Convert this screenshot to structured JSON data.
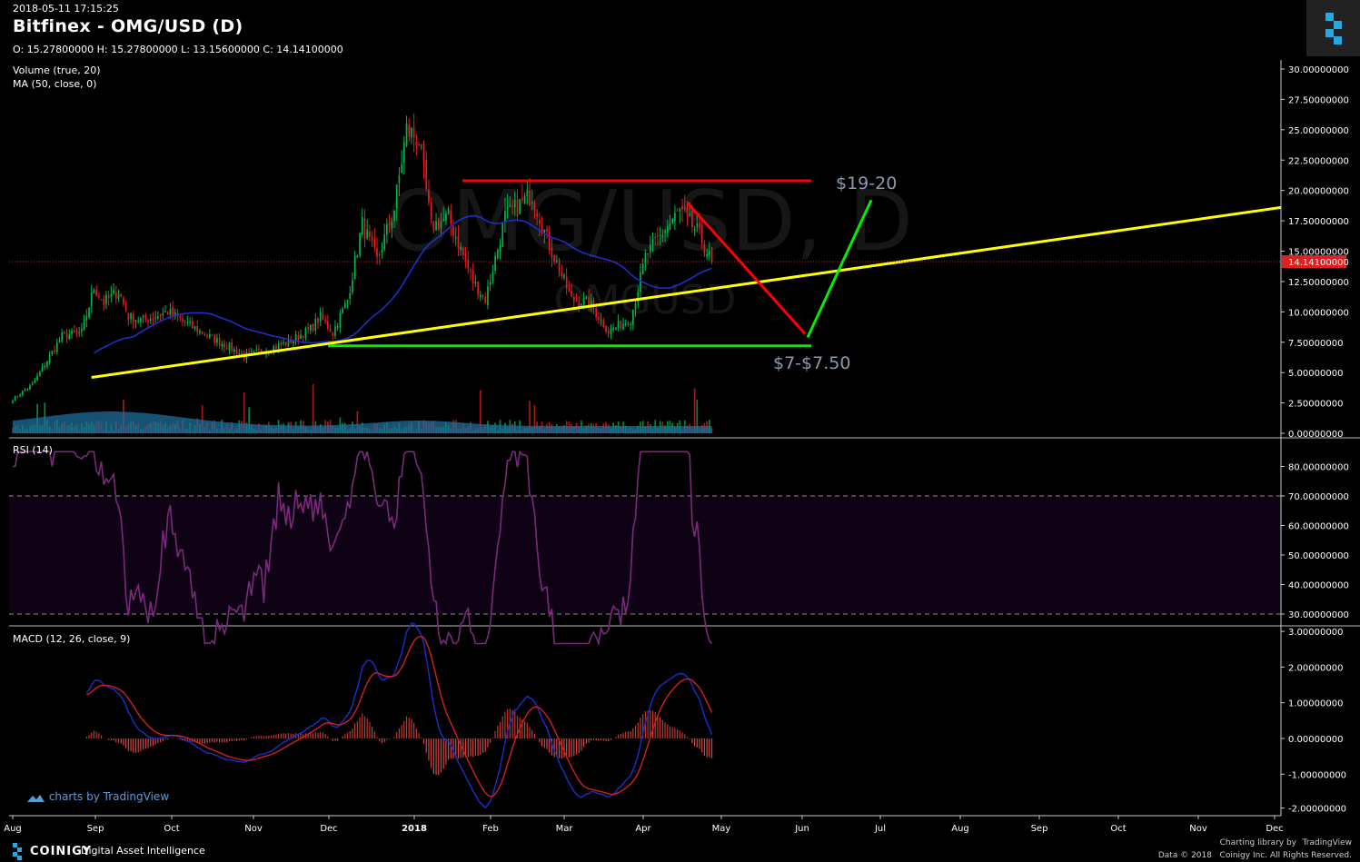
{
  "header": {
    "timestamp": "2018-05-11 17:15:25",
    "title": "Bitfinex - OMG/USD (D)",
    "ohlc": "O: 15.27800000 H: 15.27800000 L: 13.15600000 C: 14.14100000"
  },
  "watermark": {
    "symbol": "OMG/USD, D",
    "sub": "OMGUSD"
  },
  "colors": {
    "background": "#000000",
    "up": "#00b84a",
    "down": "#e02020",
    "ma": "#1a2fcc",
    "rsi": "#7a2a7a",
    "macd_line": "#1a2fcc",
    "signal_line": "#d21f1f",
    "trendline": "#ffff00",
    "support": "#00ee00",
    "resistance": "#ff0000"
  },
  "chart_data": {
    "type": "candlestick",
    "x_tick_labels": [
      "Aug",
      "Sep",
      "Oct",
      "Nov",
      "Dec",
      "2018",
      "Feb",
      "Mar",
      "Apr",
      "May",
      "Jun",
      "Jul",
      "Aug",
      "Sep",
      "Oct",
      "Nov",
      "Dec"
    ],
    "price_panel": {
      "indicators": [
        "Volume (true, 20)",
        "MA (50, close, 0)"
      ],
      "y_tick_labels": [
        "30.00000000",
        "27.50000000",
        "25.00000000",
        "22.50000000",
        "20.00000000",
        "17.50000000",
        "15.00000000",
        "12.50000000",
        "10.00000000",
        "7.50000000",
        "5.00000000",
        "2.50000000",
        "0.00000000"
      ],
      "ylim": [
        0,
        30
      ],
      "last_price_label": "14.14100000",
      "last_price": 14.141,
      "close_anchors": [
        {
          "date": "2017-07-31",
          "value": 2.8
        },
        {
          "date": "2017-08-08",
          "value": 4.0
        },
        {
          "date": "2017-08-20",
          "value": 8.0
        },
        {
          "date": "2017-08-28",
          "value": 8.3
        },
        {
          "date": "2017-09-02",
          "value": 12.0
        },
        {
          "date": "2017-09-06",
          "value": 10.8
        },
        {
          "date": "2017-09-12",
          "value": 11.7
        },
        {
          "date": "2017-09-16",
          "value": 9.6
        },
        {
          "date": "2017-09-22",
          "value": 9.3
        },
        {
          "date": "2017-10-02",
          "value": 10.0
        },
        {
          "date": "2017-10-14",
          "value": 8.5
        },
        {
          "date": "2017-10-25",
          "value": 7.3
        },
        {
          "date": "2017-11-02",
          "value": 6.4
        },
        {
          "date": "2017-11-10",
          "value": 6.8
        },
        {
          "date": "2017-11-20",
          "value": 7.5
        },
        {
          "date": "2017-11-29",
          "value": 8.6
        },
        {
          "date": "2017-12-03",
          "value": 9.6
        },
        {
          "date": "2017-12-08",
          "value": 8.3
        },
        {
          "date": "2017-12-14",
          "value": 11.0
        },
        {
          "date": "2017-12-20",
          "value": 17.2
        },
        {
          "date": "2017-12-26",
          "value": 14.2
        },
        {
          "date": "2018-01-02",
          "value": 18.5
        },
        {
          "date": "2018-01-07",
          "value": 25.0
        },
        {
          "date": "2018-01-12",
          "value": 24.2
        },
        {
          "date": "2018-01-17",
          "value": 17.0
        },
        {
          "date": "2018-01-24",
          "value": 17.8
        },
        {
          "date": "2018-02-03",
          "value": 12.5
        },
        {
          "date": "2018-02-08",
          "value": 11.0
        },
        {
          "date": "2018-02-16",
          "value": 17.8
        },
        {
          "date": "2018-02-27",
          "value": 19.7
        },
        {
          "date": "2018-03-05",
          "value": 16.0
        },
        {
          "date": "2018-03-15",
          "value": 11.0
        },
        {
          "date": "2018-03-22",
          "value": 10.8
        },
        {
          "date": "2018-03-30",
          "value": 8.4
        },
        {
          "date": "2018-04-08",
          "value": 9.4
        },
        {
          "date": "2018-04-14",
          "value": 14.5
        },
        {
          "date": "2018-04-22",
          "value": 16.8
        },
        {
          "date": "2018-04-28",
          "value": 18.3
        },
        {
          "date": "2018-05-05",
          "value": 16.6
        },
        {
          "date": "2018-05-11",
          "value": 14.14
        }
      ]
    },
    "rsi_panel": {
      "label": "RSI (14)",
      "y_tick_labels": [
        "80.00000000",
        "70.00000000",
        "60.00000000",
        "50.00000000",
        "40.00000000",
        "30.00000000"
      ],
      "bands": [
        30,
        70
      ]
    },
    "macd_panel": {
      "label": "MACD (12, 26, close, 9)",
      "y_tick_labels": [
        "3.00000000",
        "2.00000000",
        "1.00000000",
        "0.00000000",
        "-1.00000000",
        "-2.00000000"
      ]
    },
    "annotations": [
      {
        "text": "$19-20",
        "role": "target"
      },
      {
        "text": "$7-$7.50",
        "role": "support"
      }
    ],
    "drawn_levels": {
      "resistance": 20.8,
      "support": 7.2
    }
  },
  "branding": {
    "tv_mark": "charts by TradingView",
    "footer_brand": "COINIGY",
    "footer_tagline": "Digital Asset Intelligence",
    "charting_library": "Charting library by",
    "tv_name": "TradingView",
    "copyright": "Data © 2018   Coinigy Inc. All Rights Reserved."
  }
}
